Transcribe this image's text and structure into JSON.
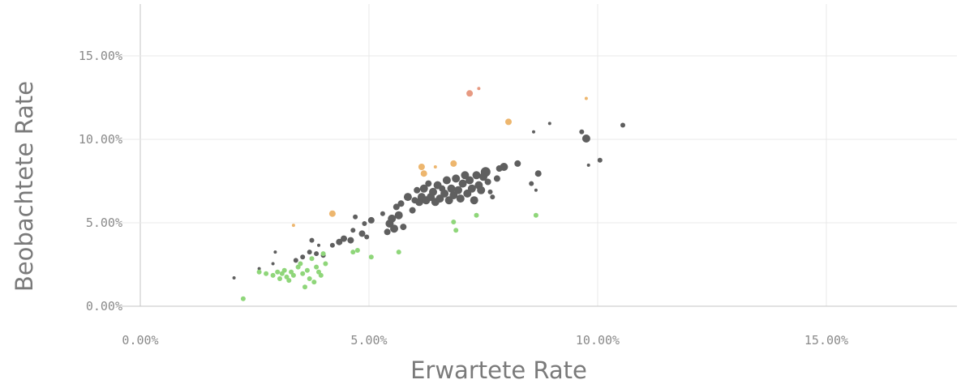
{
  "chart_data": {
    "type": "scatter",
    "title": "",
    "xlabel": "Erwartete Rate",
    "ylabel": "Beobachtete Rate",
    "xlim": [
      0,
      18
    ],
    "ylim": [
      0,
      17.5
    ],
    "xticks": [
      0,
      5,
      10,
      15
    ],
    "yticks": [
      0,
      5,
      10,
      15
    ],
    "xtick_labels": [
      "0.00%",
      "5.00%",
      "10.00%",
      "15.00%"
    ],
    "ytick_labels": [
      "0.00%",
      "5.00%",
      "10.00%",
      "15.00%"
    ],
    "grid": true,
    "legend": "none",
    "series": [
      {
        "color": "#5f5f5f",
        "opacity": 1,
        "points": [
          [
            2.05,
            1.7,
            2
          ],
          [
            2.6,
            2.25,
            2
          ],
          [
            2.9,
            2.55,
            2
          ],
          [
            2.95,
            3.25,
            2
          ],
          [
            3.4,
            2.75,
            3
          ],
          [
            3.55,
            2.95,
            3
          ],
          [
            3.7,
            3.25,
            3
          ],
          [
            3.75,
            3.95,
            3
          ],
          [
            3.85,
            3.15,
            3
          ],
          [
            3.9,
            3.65,
            2
          ],
          [
            4.0,
            3.05,
            3
          ],
          [
            4.2,
            3.65,
            3
          ],
          [
            4.35,
            3.85,
            4
          ],
          [
            4.45,
            4.05,
            4
          ],
          [
            4.6,
            3.95,
            4
          ],
          [
            4.7,
            5.35,
            3
          ],
          [
            4.65,
            4.55,
            3
          ],
          [
            4.85,
            4.35,
            4
          ],
          [
            4.9,
            4.95,
            3
          ],
          [
            4.95,
            4.15,
            3
          ],
          [
            5.05,
            5.15,
            4
          ],
          [
            5.3,
            5.55,
            3
          ],
          [
            5.4,
            4.45,
            4
          ],
          [
            5.45,
            4.95,
            5
          ],
          [
            5.5,
            5.25,
            5
          ],
          [
            5.55,
            4.65,
            5
          ],
          [
            5.6,
            5.95,
            4
          ],
          [
            5.65,
            5.45,
            5
          ],
          [
            5.75,
            4.75,
            4
          ],
          [
            5.7,
            6.15,
            4
          ],
          [
            5.85,
            6.55,
            5
          ],
          [
            5.95,
            5.75,
            4
          ],
          [
            6.0,
            6.35,
            4
          ],
          [
            6.05,
            6.95,
            4
          ],
          [
            6.1,
            6.25,
            5
          ],
          [
            6.15,
            6.55,
            5
          ],
          [
            6.2,
            7.05,
            5
          ],
          [
            6.25,
            6.35,
            5
          ],
          [
            6.3,
            7.35,
            4
          ],
          [
            6.35,
            6.55,
            5
          ],
          [
            6.4,
            6.85,
            5
          ],
          [
            6.45,
            6.25,
            5
          ],
          [
            6.5,
            7.25,
            5
          ],
          [
            6.55,
            6.45,
            5
          ],
          [
            6.6,
            7.05,
            4
          ],
          [
            6.65,
            6.75,
            5
          ],
          [
            6.7,
            7.55,
            5
          ],
          [
            6.75,
            6.35,
            5
          ],
          [
            6.8,
            7.05,
            5
          ],
          [
            6.85,
            6.65,
            5
          ],
          [
            6.9,
            7.65,
            5
          ],
          [
            6.95,
            6.95,
            5
          ],
          [
            7.0,
            6.45,
            5
          ],
          [
            7.05,
            7.35,
            5
          ],
          [
            7.1,
            7.85,
            5
          ],
          [
            7.15,
            6.75,
            5
          ],
          [
            7.2,
            7.55,
            5
          ],
          [
            7.25,
            7.05,
            5
          ],
          [
            7.3,
            6.35,
            5
          ],
          [
            7.35,
            7.85,
            5
          ],
          [
            7.4,
            7.25,
            5
          ],
          [
            7.45,
            6.95,
            5
          ],
          [
            7.5,
            7.75,
            5
          ],
          [
            7.55,
            8.05,
            6
          ],
          [
            7.6,
            7.45,
            4
          ],
          [
            7.65,
            6.85,
            3
          ],
          [
            7.7,
            6.55,
            3
          ],
          [
            7.8,
            7.65,
            4
          ],
          [
            7.85,
            8.25,
            4
          ],
          [
            7.95,
            8.35,
            5
          ],
          [
            8.25,
            8.55,
            4
          ],
          [
            8.55,
            7.35,
            3
          ],
          [
            8.6,
            10.45,
            2
          ],
          [
            8.7,
            7.95,
            4
          ],
          [
            8.65,
            6.95,
            2
          ],
          [
            8.95,
            10.95,
            2
          ],
          [
            9.65,
            10.45,
            3
          ],
          [
            9.75,
            10.05,
            5
          ],
          [
            9.8,
            8.45,
            2
          ],
          [
            10.05,
            8.75,
            3
          ],
          [
            10.55,
            10.85,
            3
          ]
        ]
      },
      {
        "color": "#8fd67a",
        "opacity": 1,
        "points": [
          [
            2.25,
            0.45,
            3
          ],
          [
            2.6,
            2.05,
            3
          ],
          [
            2.75,
            1.95,
            3
          ],
          [
            2.9,
            1.85,
            3
          ],
          [
            3.0,
            2.05,
            3
          ],
          [
            3.05,
            1.65,
            3
          ],
          [
            3.1,
            1.95,
            3
          ],
          [
            3.15,
            2.15,
            3
          ],
          [
            3.2,
            1.75,
            3
          ],
          [
            3.25,
            1.55,
            3
          ],
          [
            3.3,
            2.05,
            3
          ],
          [
            3.35,
            1.85,
            3
          ],
          [
            3.45,
            2.35,
            3
          ],
          [
            3.5,
            2.55,
            3
          ],
          [
            3.55,
            1.95,
            3
          ],
          [
            3.6,
            1.15,
            3
          ],
          [
            3.65,
            2.15,
            3
          ],
          [
            3.7,
            1.65,
            3
          ],
          [
            3.75,
            2.85,
            3
          ],
          [
            3.8,
            1.45,
            3
          ],
          [
            3.85,
            2.35,
            3
          ],
          [
            3.9,
            2.05,
            3
          ],
          [
            3.95,
            1.85,
            3
          ],
          [
            4.0,
            3.15,
            3
          ],
          [
            4.05,
            2.55,
            3
          ],
          [
            4.65,
            3.25,
            3
          ],
          [
            4.75,
            3.35,
            3
          ],
          [
            5.05,
            2.95,
            3
          ],
          [
            5.65,
            3.25,
            3
          ],
          [
            6.85,
            5.05,
            3
          ],
          [
            6.9,
            4.55,
            3
          ],
          [
            7.35,
            5.45,
            3
          ],
          [
            8.65,
            5.45,
            3
          ]
        ]
      },
      {
        "color": "#edb66e",
        "opacity": 1,
        "points": [
          [
            3.35,
            4.85,
            2
          ],
          [
            4.2,
            5.55,
            4
          ],
          [
            6.15,
            8.35,
            4
          ],
          [
            6.2,
            7.95,
            4
          ],
          [
            6.45,
            8.35,
            2
          ],
          [
            6.85,
            8.55,
            4
          ],
          [
            8.05,
            11.05,
            4
          ],
          [
            9.75,
            12.45,
            2
          ]
        ]
      },
      {
        "color": "#e79a82",
        "opacity": 1,
        "points": [
          [
            7.2,
            12.75,
            4
          ],
          [
            7.4,
            13.05,
            2
          ]
        ]
      }
    ]
  }
}
